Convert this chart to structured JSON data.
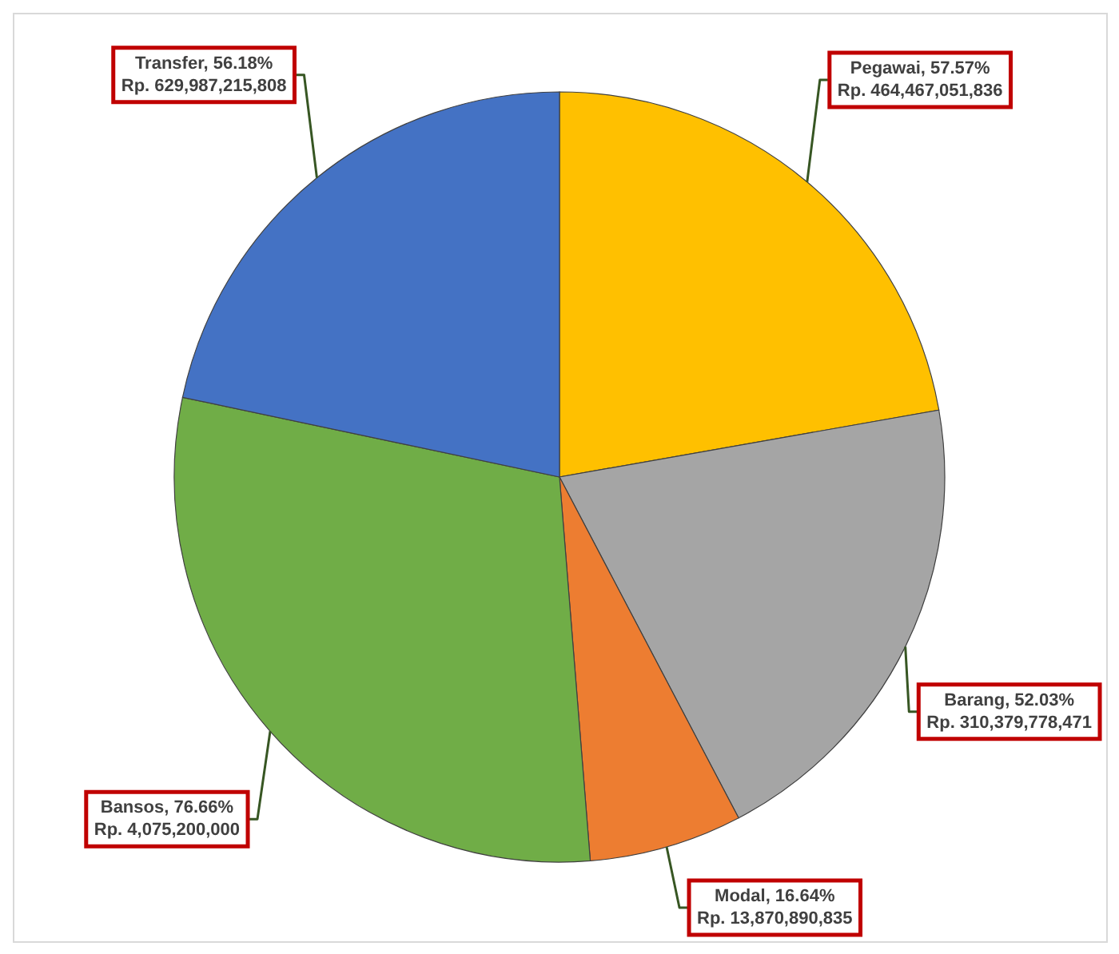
{
  "chart_data": {
    "type": "pie",
    "categories": [
      "Pegawai",
      "Barang",
      "Modal",
      "Bansos",
      "Transfer"
    ],
    "values": [
      57.57,
      52.03,
      16.64,
      76.66,
      56.18
    ],
    "colors": [
      "#ffc000",
      "#a5a5a5",
      "#ed7d31",
      "#70ad47",
      "#4472c4"
    ],
    "value_labels": [
      "57.57%\nRp. 464,467,051,836",
      "52.03%\nRp. 310,379,778,471",
      "16.64%\nRp. 13,870,890,835",
      "76.66%\nRp. 4,075,200,000",
      "56.18%\nRp. 629,987,215,808"
    ]
  }
}
